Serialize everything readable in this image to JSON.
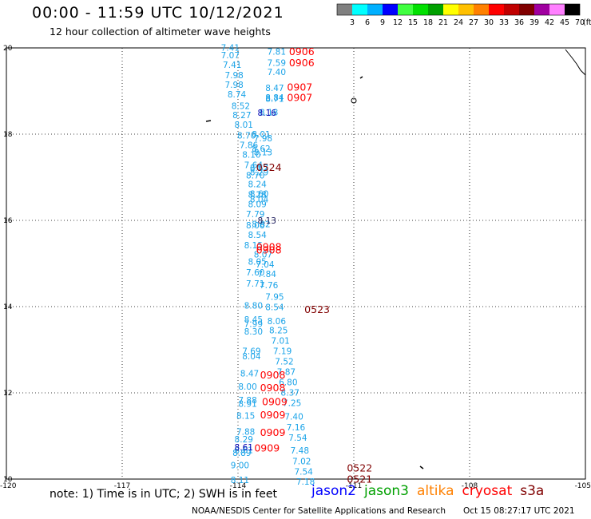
{
  "header": {
    "title": "00:00 - 11:59 UTC 10/12/2021",
    "subtitle": "12 hour collection of altimeter wave heights"
  },
  "legend": {
    "unit": "(ft)",
    "colors": [
      "#808080",
      "#00ffff",
      "#00b0ff",
      "#0000ff",
      "#40ff40",
      "#00e000",
      "#00a000",
      "#ffff00",
      "#ffc000",
      "#ff8000",
      "#ff0000",
      "#c00000",
      "#800000",
      "#a000a0",
      "#ff80ff",
      "#000000"
    ],
    "labels": [
      "3",
      "6",
      "9",
      "12",
      "15",
      "18",
      "21",
      "24",
      "27",
      "30",
      "33",
      "36",
      "39",
      "42",
      "45",
      "70"
    ]
  },
  "axes": {
    "x_ticks": [
      "-120",
      "-117",
      "-114",
      "-111",
      "-108",
      "-105"
    ],
    "y_ticks": [
      "20",
      "18",
      "16",
      "14",
      "12",
      "10"
    ]
  },
  "swh_color": "#1aa3e8",
  "swh_points": [
    {
      "lon": -114.2,
      "lat": 20.01,
      "v": "7.41"
    },
    {
      "lon": -114.2,
      "lat": 19.83,
      "v": "7.07"
    },
    {
      "lon": -114.15,
      "lat": 19.61,
      "v": "7.41"
    },
    {
      "lon": -114.1,
      "lat": 19.37,
      "v": "7.98"
    },
    {
      "lon": -114.1,
      "lat": 19.15,
      "v": "7.98"
    },
    {
      "lon": -114.03,
      "lat": 18.93,
      "v": "8.74"
    },
    {
      "lon": -113.93,
      "lat": 18.66,
      "v": "8.52"
    },
    {
      "lon": -113.9,
      "lat": 18.44,
      "v": "8.27"
    },
    {
      "lon": -113.85,
      "lat": 18.22,
      "v": "8.01"
    },
    {
      "lon": -113.78,
      "lat": 17.97,
      "v": "8.70"
    },
    {
      "lon": -113.72,
      "lat": 17.75,
      "v": "7.86"
    },
    {
      "lon": -113.65,
      "lat": 17.53,
      "v": "8.10"
    },
    {
      "lon": -113.6,
      "lat": 17.29,
      "v": "7.64"
    },
    {
      "lon": -113.55,
      "lat": 17.05,
      "v": "8.70"
    },
    {
      "lon": -113.5,
      "lat": 16.84,
      "v": "8.24"
    },
    {
      "lon": -113.5,
      "lat": 16.6,
      "v": "8.28"
    },
    {
      "lon": -113.5,
      "lat": 16.38,
      "v": "8.09"
    },
    {
      "lon": -113.55,
      "lat": 16.15,
      "v": "7.79"
    },
    {
      "lon": -113.55,
      "lat": 15.89,
      "v": "8.06"
    },
    {
      "lon": -113.5,
      "lat": 15.67,
      "v": "8.54"
    },
    {
      "lon": -113.6,
      "lat": 15.43,
      "v": "8.15"
    },
    {
      "lon": -113.35,
      "lat": 15.21,
      "v": "8.07"
    },
    {
      "lon": -113.5,
      "lat": 15.05,
      "v": "8.05"
    },
    {
      "lon": -113.3,
      "lat": 14.98,
      "v": "7.04"
    },
    {
      "lon": -113.55,
      "lat": 14.8,
      "v": "7.60"
    },
    {
      "lon": -113.25,
      "lat": 14.76,
      "v": "7.84"
    },
    {
      "lon": -113.55,
      "lat": 14.54,
      "v": "7.71"
    },
    {
      "lon": -113.2,
      "lat": 14.5,
      "v": "7.76"
    },
    {
      "lon": -113.05,
      "lat": 14.23,
      "v": "7.95"
    },
    {
      "lon": -113.6,
      "lat": 14.03,
      "v": "8.80"
    },
    {
      "lon": -113.05,
      "lat": 13.99,
      "v": "8.54"
    },
    {
      "lon": -113.6,
      "lat": 13.7,
      "v": "8.45"
    },
    {
      "lon": -113.6,
      "lat": 13.6,
      "v": "7.99"
    },
    {
      "lon": -113.0,
      "lat": 13.67,
      "v": "8.06"
    },
    {
      "lon": -113.6,
      "lat": 13.43,
      "v": "8.30"
    },
    {
      "lon": -112.95,
      "lat": 13.45,
      "v": "8.25"
    },
    {
      "lon": -112.9,
      "lat": 13.21,
      "v": "7.01"
    },
    {
      "lon": -113.65,
      "lat": 12.97,
      "v": "7.69"
    },
    {
      "lon": -112.85,
      "lat": 12.97,
      "v": "7.19"
    },
    {
      "lon": -113.65,
      "lat": 12.85,
      "v": "8.04"
    },
    {
      "lon": -112.8,
      "lat": 12.73,
      "v": "7.52"
    },
    {
      "lon": -113.7,
      "lat": 12.45,
      "v": "8.47"
    },
    {
      "lon": -112.75,
      "lat": 12.49,
      "v": "7.87"
    },
    {
      "lon": -112.7,
      "lat": 12.25,
      "v": "6.80"
    },
    {
      "lon": -113.75,
      "lat": 12.15,
      "v": "8.00"
    },
    {
      "lon": -112.65,
      "lat": 12.01,
      "v": "8.37"
    },
    {
      "lon": -113.75,
      "lat": 11.83,
      "v": "7.88"
    },
    {
      "lon": -113.75,
      "lat": 11.75,
      "v": "8.91"
    },
    {
      "lon": -112.6,
      "lat": 11.77,
      "v": "7.25"
    },
    {
      "lon": -113.8,
      "lat": 11.47,
      "v": "8.15"
    },
    {
      "lon": -112.55,
      "lat": 11.45,
      "v": "7.40"
    },
    {
      "lon": -112.5,
      "lat": 11.2,
      "v": "7.16"
    },
    {
      "lon": -113.8,
      "lat": 11.1,
      "v": "7.88"
    },
    {
      "lon": -113.85,
      "lat": 10.93,
      "v": "8.29"
    },
    {
      "lon": -112.45,
      "lat": 10.96,
      "v": "7.54"
    },
    {
      "lon": -113.85,
      "lat": 10.68,
      "v": "8.61"
    },
    {
      "lon": -113.9,
      "lat": 10.61,
      "v": "8.89"
    },
    {
      "lon": -112.4,
      "lat": 10.67,
      "v": "7.48"
    },
    {
      "lon": -112.35,
      "lat": 10.42,
      "v": "7.02"
    },
    {
      "lon": -113.95,
      "lat": 10.32,
      "v": "9.00"
    },
    {
      "lon": -112.3,
      "lat": 10.18,
      "v": "7.54"
    },
    {
      "lon": -113.95,
      "lat": 9.98,
      "v": "8.11"
    },
    {
      "lon": -112.25,
      "lat": 9.94,
      "v": "7.18"
    },
    {
      "lon": -113.0,
      "lat": 19.92,
      "v": "7.81"
    },
    {
      "lon": -113.0,
      "lat": 19.66,
      "v": "7.59"
    },
    {
      "lon": -113.0,
      "lat": 19.44,
      "v": "7.40"
    },
    {
      "lon": -113.05,
      "lat": 19.07,
      "v": "8.47"
    },
    {
      "lon": -113.05,
      "lat": 18.85,
      "v": "8.84"
    },
    {
      "lon": -113.05,
      "lat": 18.82,
      "v": "8.71"
    },
    {
      "lon": -113.2,
      "lat": 18.51,
      "v": "8.18"
    },
    {
      "lon": -113.4,
      "lat": 18.0,
      "v": "8.01"
    },
    {
      "lon": -113.35,
      "lat": 17.91,
      "v": "7.98"
    },
    {
      "lon": -113.4,
      "lat": 17.67,
      "v": "8.62"
    },
    {
      "lon": -113.35,
      "lat": 17.58,
      "v": "8.13"
    },
    {
      "lon": -113.45,
      "lat": 17.22,
      "v": "8.67"
    },
    {
      "lon": -113.45,
      "lat": 17.12,
      "v": "8.29"
    },
    {
      "lon": -113.45,
      "lat": 16.62,
      "v": "8.60"
    },
    {
      "lon": -113.45,
      "lat": 16.49,
      "v": "8.04"
    },
    {
      "lon": -113.4,
      "lat": 15.92,
      "v": "8.82"
    }
  ],
  "dark_points": [
    {
      "lon": -113.25,
      "lat": 18.5,
      "v": "8.16",
      "color": "#0000b0"
    },
    {
      "lon": -113.25,
      "lat": 16.0,
      "v": "8.13",
      "color": "#202060"
    },
    {
      "lon": -113.85,
      "lat": 10.74,
      "v": "8.61",
      "color": "#0000b0"
    }
  ],
  "time_labels": [
    {
      "lon": -112.35,
      "lat": 19.93,
      "t": "0906",
      "color": "#ff0000"
    },
    {
      "lon": -112.35,
      "lat": 19.67,
      "t": "0906",
      "color": "#ff0000"
    },
    {
      "lon": -112.4,
      "lat": 19.1,
      "t": "0907",
      "color": "#ff0000"
    },
    {
      "lon": -112.4,
      "lat": 18.86,
      "t": "0907",
      "color": "#ff0000"
    },
    {
      "lon": -113.2,
      "lat": 17.24,
      "t": "0524",
      "color": "#800000"
    },
    {
      "lon": -113.2,
      "lat": 15.4,
      "t": "0908",
      "color": "#ff0000"
    },
    {
      "lon": -113.2,
      "lat": 15.32,
      "t": "0908",
      "color": "#ff0000"
    },
    {
      "lon": -111.95,
      "lat": 13.94,
      "t": "0523",
      "color": "#800000"
    },
    {
      "lon": -113.1,
      "lat": 12.43,
      "t": "0908",
      "color": "#ff0000"
    },
    {
      "lon": -113.1,
      "lat": 12.13,
      "t": "0908",
      "color": "#ff0000"
    },
    {
      "lon": -113.05,
      "lat": 11.81,
      "t": "0909",
      "color": "#ff0000"
    },
    {
      "lon": -113.1,
      "lat": 11.5,
      "t": "0909",
      "color": "#ff0000"
    },
    {
      "lon": -113.1,
      "lat": 11.09,
      "t": "0909",
      "color": "#ff0000"
    },
    {
      "lon": -113.25,
      "lat": 10.73,
      "t": "0909",
      "color": "#ff0000"
    },
    {
      "lon": -110.85,
      "lat": 10.27,
      "t": "0522",
      "color": "#800000"
    },
    {
      "lon": -110.85,
      "lat": 10.01,
      "t": "0521",
      "color": "#800000"
    }
  ],
  "footer": {
    "note": "note: 1) Time is in UTC; 2) SWH is in feet",
    "satellites": [
      {
        "name": "jason2",
        "color": "#0000ff"
      },
      {
        "name": "jason3",
        "color": "#00a000"
      },
      {
        "name": "altika",
        "color": "#ff8000"
      },
      {
        "name": "cryosat",
        "color": "#ff0000"
      },
      {
        "name": "s3a",
        "color": "#800000"
      }
    ],
    "credit": "NOAA/NESDIS Center for Satellite Applications and Research",
    "timestamp": "Oct 15 08:27:17 UTC 2021"
  }
}
